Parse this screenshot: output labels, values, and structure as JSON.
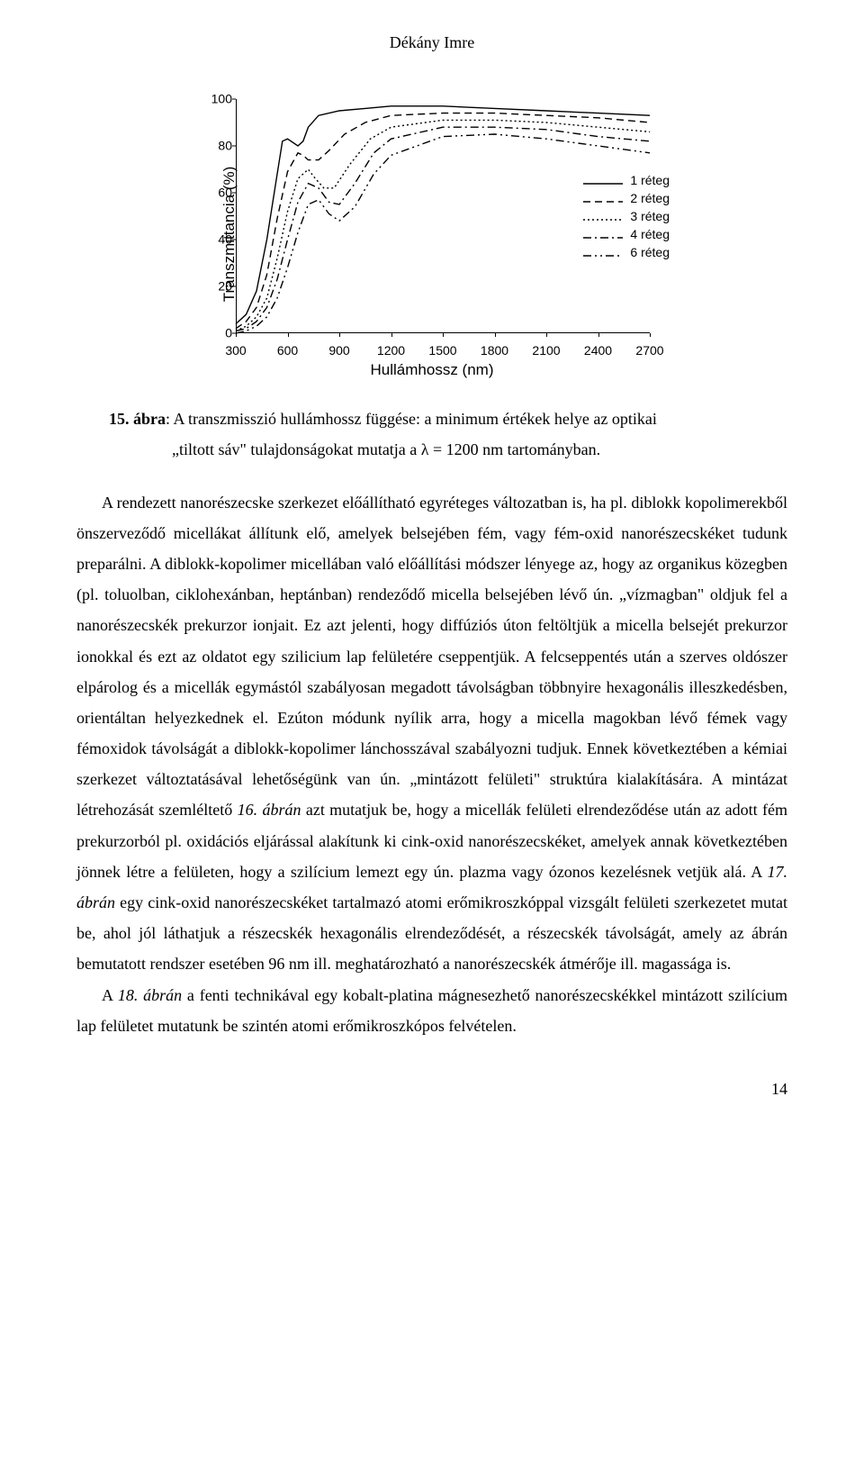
{
  "author": "Dékány Imre",
  "chart": {
    "type": "line",
    "y_axis_label": "Transzmittancia (%)",
    "x_axis_label": "Hullámhossz (nm)",
    "ylim": [
      0,
      100
    ],
    "yticks": [
      0,
      20,
      40,
      60,
      80,
      100
    ],
    "xlim": [
      300,
      2700
    ],
    "xticks": [
      300,
      600,
      900,
      1200,
      1500,
      1800,
      2100,
      2400,
      2700
    ],
    "legend_items": [
      {
        "label": "1 réteg",
        "dash": "solid"
      },
      {
        "label": "2 réteg",
        "dash": "dashed"
      },
      {
        "label": "3 réteg",
        "dash": "dotted"
      },
      {
        "label": "4 réteg",
        "dash": "dashdot"
      },
      {
        "label": "6 réteg",
        "dash": "dashdotdot"
      }
    ],
    "series": [
      {
        "name": "1 réteg",
        "dash": "solid",
        "points": [
          [
            300,
            4
          ],
          [
            360,
            8
          ],
          [
            420,
            18
          ],
          [
            480,
            40
          ],
          [
            540,
            68
          ],
          [
            570,
            82
          ],
          [
            600,
            83
          ],
          [
            660,
            80
          ],
          [
            690,
            82
          ],
          [
            720,
            88
          ],
          [
            780,
            93
          ],
          [
            900,
            95
          ],
          [
            1050,
            96
          ],
          [
            1200,
            97
          ],
          [
            1500,
            97
          ],
          [
            1800,
            96
          ],
          [
            2100,
            95
          ],
          [
            2400,
            94
          ],
          [
            2700,
            93
          ]
        ]
      },
      {
        "name": "2 réteg",
        "dash": "dashed",
        "points": [
          [
            300,
            2
          ],
          [
            360,
            5
          ],
          [
            420,
            11
          ],
          [
            480,
            25
          ],
          [
            540,
            49
          ],
          [
            600,
            69
          ],
          [
            660,
            77
          ],
          [
            690,
            76
          ],
          [
            720,
            74
          ],
          [
            780,
            74
          ],
          [
            840,
            78
          ],
          [
            930,
            85
          ],
          [
            1050,
            90
          ],
          [
            1200,
            93
          ],
          [
            1500,
            94
          ],
          [
            1800,
            94
          ],
          [
            2100,
            93
          ],
          [
            2400,
            92
          ],
          [
            2700,
            90
          ]
        ]
      },
      {
        "name": "3 réteg",
        "dash": "dotted",
        "points": [
          [
            300,
            1
          ],
          [
            360,
            3
          ],
          [
            420,
            7
          ],
          [
            480,
            15
          ],
          [
            540,
            32
          ],
          [
            600,
            52
          ],
          [
            660,
            66
          ],
          [
            720,
            70
          ],
          [
            750,
            67
          ],
          [
            810,
            62
          ],
          [
            870,
            62
          ],
          [
            960,
            72
          ],
          [
            1080,
            83
          ],
          [
            1200,
            88
          ],
          [
            1500,
            91
          ],
          [
            1800,
            91
          ],
          [
            2100,
            90
          ],
          [
            2400,
            88
          ],
          [
            2700,
            86
          ]
        ]
      },
      {
        "name": "4 réteg",
        "dash": "dashdot",
        "points": [
          [
            300,
            1
          ],
          [
            360,
            2
          ],
          [
            420,
            5
          ],
          [
            480,
            11
          ],
          [
            540,
            23
          ],
          [
            600,
            40
          ],
          [
            660,
            56
          ],
          [
            720,
            64
          ],
          [
            780,
            62
          ],
          [
            840,
            56
          ],
          [
            900,
            55
          ],
          [
            990,
            64
          ],
          [
            1100,
            77
          ],
          [
            1200,
            83
          ],
          [
            1500,
            88
          ],
          [
            1800,
            88
          ],
          [
            2100,
            87
          ],
          [
            2400,
            84
          ],
          [
            2700,
            82
          ]
        ]
      },
      {
        "name": "6 réteg",
        "dash": "dashdotdot",
        "points": [
          [
            300,
            0
          ],
          [
            360,
            1
          ],
          [
            420,
            3
          ],
          [
            480,
            7
          ],
          [
            540,
            15
          ],
          [
            600,
            28
          ],
          [
            660,
            43
          ],
          [
            720,
            55
          ],
          [
            780,
            57
          ],
          [
            840,
            51
          ],
          [
            900,
            48
          ],
          [
            990,
            54
          ],
          [
            1100,
            68
          ],
          [
            1200,
            76
          ],
          [
            1500,
            84
          ],
          [
            1800,
            85
          ],
          [
            2100,
            83
          ],
          [
            2400,
            80
          ],
          [
            2700,
            77
          ]
        ]
      }
    ],
    "line_color": "#000000",
    "line_width": 1.4,
    "label_fontsize": 14,
    "axis_fontsize": 17,
    "background": "#ffffff"
  },
  "caption": {
    "prefix": "15. ábra",
    "line1": ": A transzmisszió hullámhossz függése: a minimum értékek helye az optikai",
    "line2": "„tiltott sáv\" tulajdonságokat mutatja a λ = 1200 nm tartományban."
  },
  "paragraph1_lead": "A rendezett nanorészecske szerkezet előállítható egyréteges változatban is, ha pl. diblokk kopolimerekből önszerveződő micellákat állítunk elő, amelyek belsejében fém, vagy fém-oxid nanorészecskéket tudunk preparálni. A diblokk-kopolimer micellában való előállítási módszer lényege az, hogy az organikus közegben (pl. toluolban, ciklohexánban, heptánban) rendeződő micella belsejében lévő ún. „vízmagban\" oldjuk fel a nanorészecskék prekurzor ionjait. Ez azt jelenti, hogy diffúziós úton feltöltjük a micella belsejét prekurzor ionokkal és ezt az oldatot egy szilicium lap felületére cseppentjük. A felcseppentés után a szerves oldószer elpárolog és a micellák egymástól szabályosan megadott távolságban többnyire hexagonális illeszkedésben, orientáltan helyezkednek el. Ezúton módunk nyílik arra, hogy a micella magokban lévő fémek vagy fémoxidok távolságát a diblokk-kopolimer lánchosszával szabályozni tudjuk. Ennek következtében a kémiai szerkezet változtatásával lehetőségünk van ún. „mintázott felületi\" struktúra kialakítására. A mintázat létrehozását szemléltető ",
  "fig16_ref": "16. ábrán",
  "paragraph1_mid": " azt mutatjuk be, hogy a micellák felületi elrendeződése után az adott fém prekurzorból pl. oxidációs eljárással alakítunk ki cink-oxid nanorészecskéket, amelyek annak következtében jönnek létre a felületen, hogy a szilícium lemezt egy ún. plazma vagy ózonos kezelésnek vetjük alá. A ",
  "fig17_ref": "17. ábrán",
  "paragraph1_end": " egy cink-oxid nanorészecskéket tartalmazó atomi erőmikroszkóppal vizsgált felületi szerkezetet mutat be, ahol jól láthatjuk a részecskék hexagonális elrendeződését, a részecskék távolságát, amely az ábrán bemutatott rendszer esetében 96 nm ill. meghatározható a nanorészecskék átmérője ill. magassága is.",
  "paragraph2_lead": "A ",
  "fig18_ref": "18. ábrán",
  "paragraph2_end": " a fenti technikával egy kobalt-platina mágnesezhető nanorészecskékkel mintázott szilícium lap felületet mutatunk be szintén atomi erőmikroszkópos felvételen.",
  "pagenum": "14"
}
